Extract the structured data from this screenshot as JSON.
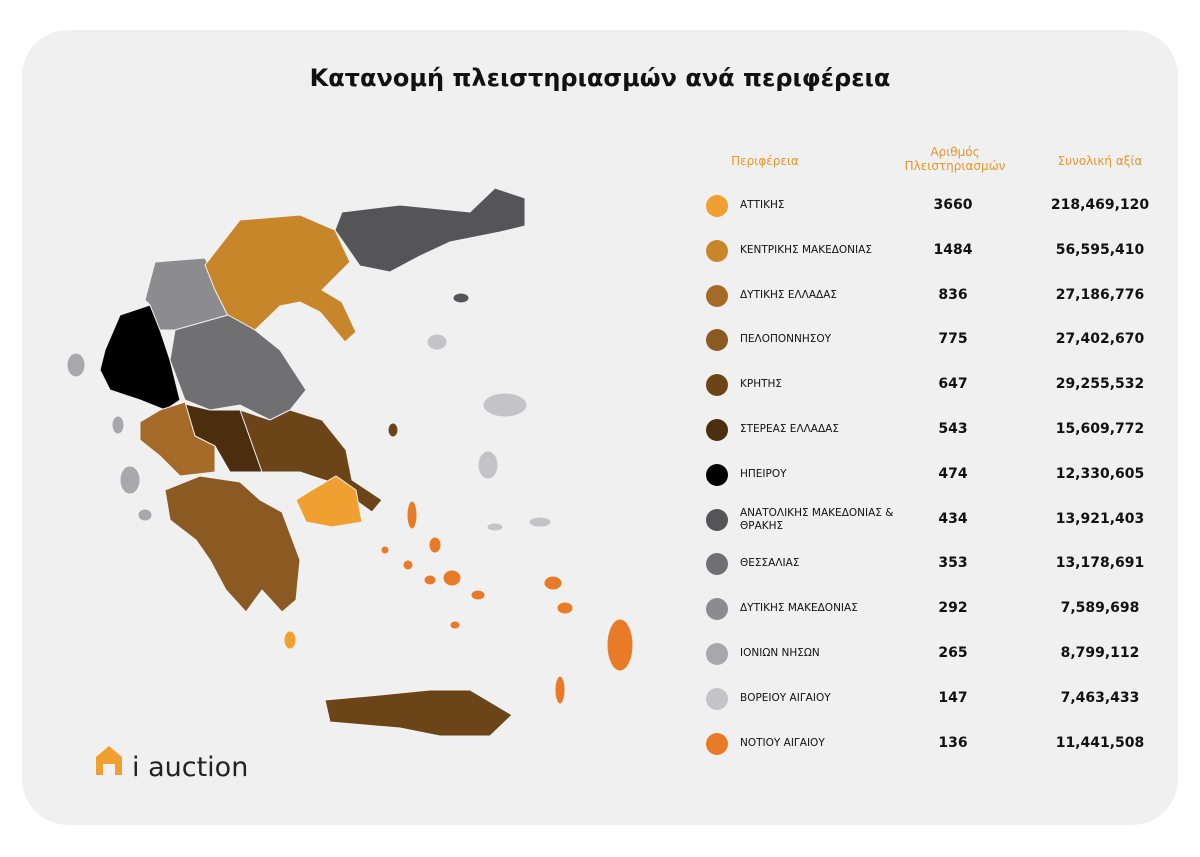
{
  "title": "Κατανομή πλειστηριασμών ανά περιφέρεια",
  "table": {
    "headers": [
      "Περιφέρεια",
      "Αριθμός Πλειστηριασμών",
      "Συνολική αξία"
    ],
    "rows": [
      {
        "region": "ΑΤΤΙΚΗΣ",
        "count": 3660,
        "value": "218,469,120",
        "color": "#f0a030"
      },
      {
        "region": "ΚΕΝΤΡΙΚΗΣ ΜΑΚΕΔΟΝΙΑΣ",
        "count": 1484,
        "value": "56,595,410",
        "color": "#c8862a"
      },
      {
        "region": "ΔΥΤΙΚΗΣ ΕΛΛΑΔΑΣ",
        "count": 836,
        "value": "27,186,776",
        "color": "#a56a28"
      },
      {
        "region": "ΠΕΛΟΠΟΝΝΗΣΟΥ",
        "count": 775,
        "value": "27,402,670",
        "color": "#8a5a22"
      },
      {
        "region": "ΚΡΗΤΗΣ",
        "count": 647,
        "value": "29,255,532",
        "color": "#6b4418"
      },
      {
        "region": "ΣΤΕΡΕΑΣ ΕΛΛΑΔΑΣ",
        "count": 543,
        "value": "15,609,772",
        "color": "#4a2e0e"
      },
      {
        "region": "ΗΠΕΙΡΟΥ",
        "count": 474,
        "value": "12,330,605",
        "color": "#000000"
      },
      {
        "region": "ΑΝΑΤΟΛΙΚΗΣ ΜΑΚΕΔΟΝΙΑΣ & ΘΡΑΚΗΣ",
        "count": 434,
        "value": "13,921,403",
        "color": "#555558"
      },
      {
        "region": "ΘΕΣΣΑΛΙΑΣ",
        "count": 353,
        "value": "13,178,691",
        "color": "#707073"
      },
      {
        "region": "ΔΥΤΙΚΗΣ ΜΑΚΕΔΟΝΙΑΣ",
        "count": 292,
        "value": "7,589,698",
        "color": "#8c8c8f"
      },
      {
        "region": "ΙΟΝΙΩΝ ΝΗΣΩΝ",
        "count": 265,
        "value": "8,799,112",
        "color": "#a8a8ab"
      },
      {
        "region": "ΒΟΡΕΙΟΥ ΑΙΓΑΙΟΥ",
        "count": 147,
        "value": "7,463,433",
        "color": "#c4c4c6"
      },
      {
        "region": "ΝΟΤΙΟΥ ΑΙΓΑΙΟΥ",
        "count": 136,
        "value": "11,441,508",
        "color": "#e87a28"
      }
    ]
  },
  "logo": "i auction"
}
